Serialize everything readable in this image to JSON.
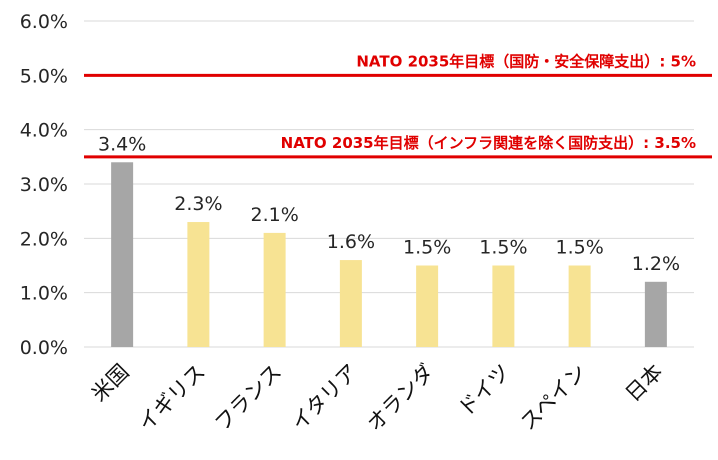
{
  "chart_data": {
    "type": "bar",
    "categories": [
      "米国",
      "イギリス",
      "フランス",
      "イタリア",
      "オランダ",
      "ドイツ",
      "スペイン",
      "日本"
    ],
    "values": [
      3.4,
      2.3,
      2.1,
      1.6,
      1.5,
      1.5,
      1.5,
      1.2
    ],
    "data_labels": [
      "3.4%",
      "2.3%",
      "2.1%",
      "1.6%",
      "1.5%",
      "1.5%",
      "1.5%",
      "1.2%"
    ],
    "bar_colors": [
      "#a6a6a6",
      "#f7e393",
      "#f7e393",
      "#f7e393",
      "#f7e393",
      "#f7e393",
      "#f7e393",
      "#a6a6a6"
    ],
    "ylim": [
      0,
      6
    ],
    "yticks": [
      0,
      1,
      2,
      3,
      4,
      5,
      6
    ],
    "ytick_labels": [
      "0.0%",
      "1.0%",
      "2.0%",
      "3.0%",
      "4.0%",
      "5.0%",
      "6.0%"
    ],
    "grid": true,
    "grid_color": "#d9d9d9",
    "reference_lines": [
      {
        "value": 5.0,
        "label": "NATO 2035年目標（国防・安全保障支出）: 5%",
        "color": "#e00000"
      },
      {
        "value": 3.5,
        "label": "NATO 2035年目標（インフラ関連を除く国防支出）: 3.5%",
        "color": "#e00000"
      }
    ],
    "title": "",
    "xlabel": "",
    "ylabel": ""
  }
}
